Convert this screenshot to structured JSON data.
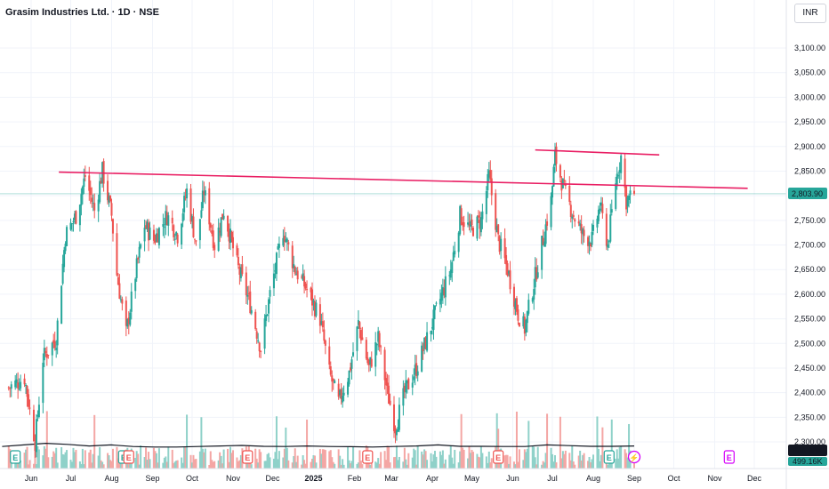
{
  "header": {
    "title": "Grasim Industries Ltd. · 1D · NSE",
    "currency": "INR"
  },
  "colors": {
    "up": "#26a69a",
    "down": "#ef5350",
    "vol_up": "#8fd1c9",
    "vol_down": "#f4a6a4",
    "trendline": "#e91e63",
    "volume_ma": "#131722",
    "grid": "#f0f3fa",
    "price_tag": "#26a69a",
    "event_earnings": "#26a69a",
    "event_dividend": "#ef5350",
    "event_future": "#d500f9"
  },
  "chart_data": {
    "type": "candlestick",
    "price_axis": {
      "min": 2250,
      "max": 3130,
      "ticks": [
        "3,100.00",
        "3,050.00",
        "3,000.00",
        "2,950.00",
        "2,900.00",
        "2,850.00",
        "2,800.00",
        "2,750.00",
        "2,700.00",
        "2,650.00",
        "2,600.00",
        "2,550.00",
        "2,500.00",
        "2,450.00",
        "2,400.00",
        "2,350.00",
        "2,300.00"
      ]
    },
    "time_axis": {
      "labels": [
        {
          "text": "Jun",
          "date": "2024-06-01"
        },
        {
          "text": "Jul",
          "date": "2024-07-01"
        },
        {
          "text": "Aug",
          "date": "2024-08-01"
        },
        {
          "text": "Sep",
          "date": "2024-09-01"
        },
        {
          "text": "Oct",
          "date": "2024-10-01"
        },
        {
          "text": "Nov",
          "date": "2024-11-01"
        },
        {
          "text": "Dec",
          "date": "2024-12-01"
        },
        {
          "text": "2025",
          "date": "2025-01-01",
          "bold": true
        },
        {
          "text": "Feb",
          "date": "2025-02-01"
        },
        {
          "text": "Mar",
          "date": "2025-03-01"
        },
        {
          "text": "Apr",
          "date": "2025-04-01"
        },
        {
          "text": "May",
          "date": "2025-05-01"
        },
        {
          "text": "Jun",
          "date": "2025-06-01"
        },
        {
          "text": "Jul",
          "date": "2025-07-01"
        },
        {
          "text": "Aug",
          "date": "2025-08-01"
        },
        {
          "text": "Sep",
          "date": "2025-09-01"
        },
        {
          "text": "Oct",
          "date": "2025-10-01"
        },
        {
          "text": "Nov",
          "date": "2025-11-01"
        },
        {
          "text": "Dec",
          "date": "2025-12-01"
        }
      ]
    },
    "close_path": [
      {
        "date": "2024-05-15",
        "close": 2410
      },
      {
        "date": "2024-05-27",
        "close": 2430
      },
      {
        "date": "2024-06-04",
        "close": 2300
      },
      {
        "date": "2024-06-10",
        "close": 2470
      },
      {
        "date": "2024-06-20",
        "close": 2510
      },
      {
        "date": "2024-06-27",
        "close": 2720
      },
      {
        "date": "2024-07-05",
        "close": 2760
      },
      {
        "date": "2024-07-12",
        "close": 2840
      },
      {
        "date": "2024-07-19",
        "close": 2770
      },
      {
        "date": "2024-07-25",
        "close": 2850
      },
      {
        "date": "2024-08-01",
        "close": 2760
      },
      {
        "date": "2024-08-05",
        "close": 2640
      },
      {
        "date": "2024-08-12",
        "close": 2520
      },
      {
        "date": "2024-08-19",
        "close": 2640
      },
      {
        "date": "2024-08-26",
        "close": 2740
      },
      {
        "date": "2024-09-02",
        "close": 2710
      },
      {
        "date": "2024-09-12",
        "close": 2760
      },
      {
        "date": "2024-09-20",
        "close": 2720
      },
      {
        "date": "2024-09-27",
        "close": 2810
      },
      {
        "date": "2024-10-04",
        "close": 2700
      },
      {
        "date": "2024-10-10",
        "close": 2810
      },
      {
        "date": "2024-10-18",
        "close": 2700
      },
      {
        "date": "2024-10-25",
        "close": 2770
      },
      {
        "date": "2024-11-04",
        "close": 2660
      },
      {
        "date": "2024-11-14",
        "close": 2580
      },
      {
        "date": "2024-11-22",
        "close": 2490
      },
      {
        "date": "2024-11-29",
        "close": 2600
      },
      {
        "date": "2024-12-09",
        "close": 2730
      },
      {
        "date": "2024-12-18",
        "close": 2650
      },
      {
        "date": "2024-12-27",
        "close": 2610
      },
      {
        "date": "2025-01-06",
        "close": 2550
      },
      {
        "date": "2025-01-13",
        "close": 2440
      },
      {
        "date": "2025-01-20",
        "close": 2380
      },
      {
        "date": "2025-01-28",
        "close": 2440
      },
      {
        "date": "2025-02-04",
        "close": 2540
      },
      {
        "date": "2025-02-12",
        "close": 2450
      },
      {
        "date": "2025-02-19",
        "close": 2510
      },
      {
        "date": "2025-02-26",
        "close": 2400
      },
      {
        "date": "2025-03-04",
        "close": 2330
      },
      {
        "date": "2025-03-11",
        "close": 2400
      },
      {
        "date": "2025-03-20",
        "close": 2450
      },
      {
        "date": "2025-03-28",
        "close": 2510
      },
      {
        "date": "2025-04-07",
        "close": 2590
      },
      {
        "date": "2025-04-15",
        "close": 2650
      },
      {
        "date": "2025-04-22",
        "close": 2760
      },
      {
        "date": "2025-04-30",
        "close": 2730
      },
      {
        "date": "2025-05-08",
        "close": 2750
      },
      {
        "date": "2025-05-14",
        "close": 2840
      },
      {
        "date": "2025-05-21",
        "close": 2710
      },
      {
        "date": "2025-05-28",
        "close": 2650
      },
      {
        "date": "2025-06-05",
        "close": 2560
      },
      {
        "date": "2025-06-10",
        "close": 2530
      },
      {
        "date": "2025-06-16",
        "close": 2610
      },
      {
        "date": "2025-06-23",
        "close": 2700
      },
      {
        "date": "2025-06-30",
        "close": 2790
      },
      {
        "date": "2025-07-03",
        "close": 2880
      },
      {
        "date": "2025-07-10",
        "close": 2810
      },
      {
        "date": "2025-07-17",
        "close": 2760
      },
      {
        "date": "2025-07-24",
        "close": 2720
      },
      {
        "date": "2025-07-31",
        "close": 2710
      },
      {
        "date": "2025-08-06",
        "close": 2780
      },
      {
        "date": "2025-08-12",
        "close": 2700
      },
      {
        "date": "2025-08-18",
        "close": 2830
      },
      {
        "date": "2025-08-22",
        "close": 2880
      },
      {
        "date": "2025-08-26",
        "close": 2790
      },
      {
        "date": "2025-09-01",
        "close": 2803.9
      }
    ],
    "last_price": 2803.9,
    "last_price_label": "2,803.90",
    "trendlines": [
      {
        "from": {
          "date": "2024-06-22",
          "price": 2848
        },
        "to": {
          "date": "2025-11-26",
          "price": 2815
        }
      },
      {
        "from": {
          "date": "2025-06-18",
          "price": 2893
        },
        "to": {
          "date": "2025-09-20",
          "price": 2883
        }
      }
    ],
    "volume": {
      "axis_max": "2.5M",
      "ma_label": "684.98K",
      "last_label": "499.16K",
      "ma_series": [
        0.4,
        0.55,
        0.7,
        0.6,
        0.45,
        0.55,
        0.4,
        0.35,
        0.35,
        0.4,
        0.45,
        0.5,
        0.42,
        0.4,
        0.45,
        0.4,
        0.38,
        0.35,
        0.4,
        0.45,
        0.55,
        0.42,
        0.42,
        0.4,
        0.4,
        0.55,
        0.48,
        0.42,
        0.42,
        0.45
      ]
    },
    "events": [
      {
        "date": "2024-05-20",
        "letter": "E",
        "kind": "earnings"
      },
      {
        "date": "2024-08-10",
        "letter": "E",
        "kind": "earnings"
      },
      {
        "date": "2024-08-14",
        "letter": "E",
        "kind": "dividend"
      },
      {
        "date": "2024-11-12",
        "letter": "E",
        "kind": "dividend"
      },
      {
        "date": "2025-02-11",
        "letter": "E",
        "kind": "dividend"
      },
      {
        "date": "2025-05-21",
        "letter": "E",
        "kind": "dividend"
      },
      {
        "date": "2025-08-13",
        "letter": "E",
        "kind": "earnings"
      },
      {
        "date": "2025-09-01",
        "letter": "⚡",
        "kind": "future"
      },
      {
        "date": "2025-11-12",
        "letter": "E",
        "kind": "future"
      }
    ]
  }
}
